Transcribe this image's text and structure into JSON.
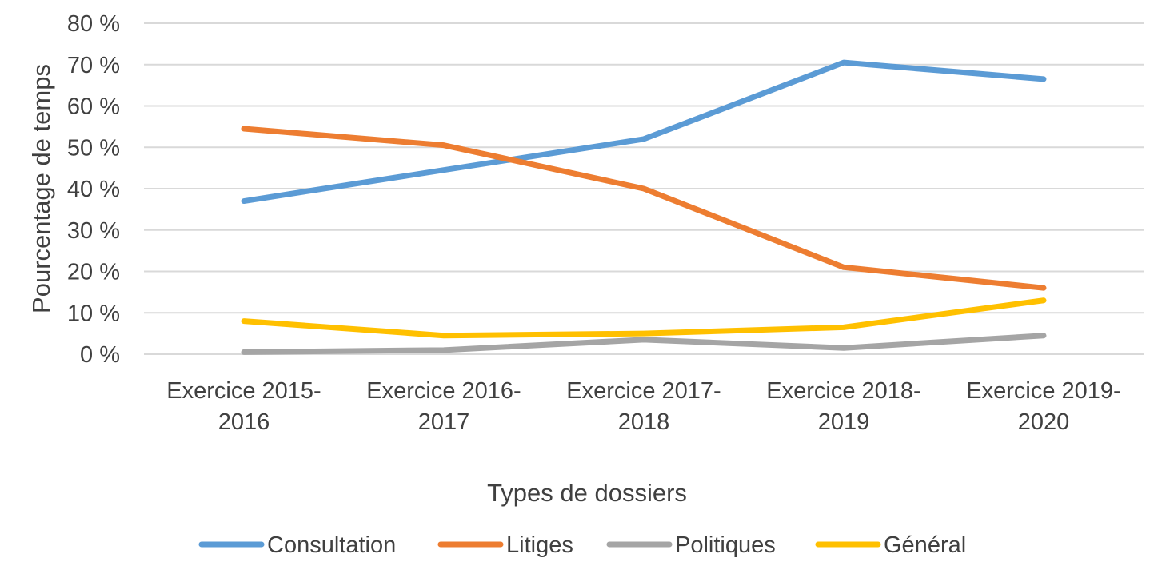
{
  "chart_data": {
    "type": "line",
    "title": "",
    "xlabel": "Types de dossiers",
    "ylabel": "Pourcentage de temps",
    "ylim": [
      0,
      80
    ],
    "yticks": [
      0,
      10,
      20,
      30,
      40,
      50,
      60,
      70,
      80
    ],
    "ytick_labels": [
      "0 %",
      "10 %",
      "20 %",
      "30 %",
      "40 %",
      "50 %",
      "60 %",
      "70 %",
      "80 %"
    ],
    "categories": [
      [
        "Exercice 2015-",
        "2016"
      ],
      [
        "Exercice 2016-",
        "2017"
      ],
      [
        "Exercice 2017-",
        "2018"
      ],
      [
        "Exercice 2018-",
        "2019"
      ],
      [
        "Exercice 2019-",
        "2020"
      ]
    ],
    "grid": true,
    "legend_position": "bottom",
    "series": [
      {
        "name": "Consultation",
        "color": "#5B9BD5",
        "values": [
          37,
          44.5,
          52,
          70.5,
          66.5
        ]
      },
      {
        "name": "Litiges",
        "color": "#ED7D31",
        "values": [
          54.5,
          50.5,
          40,
          21,
          16
        ]
      },
      {
        "name": "Politiques",
        "color": "#A5A5A5",
        "values": [
          0.5,
          1,
          3.5,
          1.5,
          4.5
        ]
      },
      {
        "name": "Général",
        "color": "#FFC000",
        "values": [
          8,
          4.5,
          5,
          6.5,
          13
        ]
      }
    ]
  }
}
